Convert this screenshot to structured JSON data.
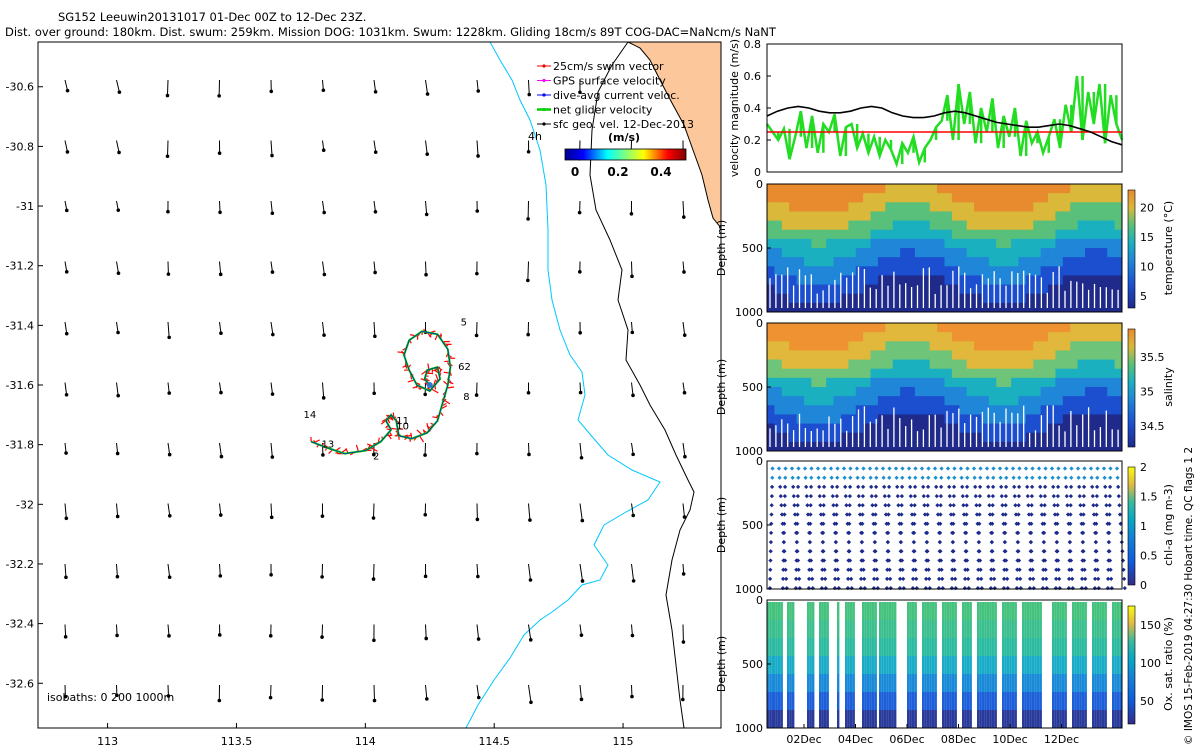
{
  "header": {
    "line1": "SG152 Leeuwin20131017 01-Dec 00Z to 12-Dec 23Z.",
    "line2": "Dist. over ground: 180km. Dist. swum: 259km. Mission DOG: 1031km. Swum: 1228km. Gliding 18cm/s 89T COG-DAC=NaNcm/s NaNT"
  },
  "credit": "© IMOS 15-Feb-2019 04:27:30 Hobart time. QC flags 1  2",
  "chart_data": [
    {
      "type": "scatter",
      "name": "map",
      "xticks": [
        "113",
        "113.5",
        "114",
        "114.5",
        "115"
      ],
      "yticks": [
        "-30.6",
        "-30.8",
        "-31",
        "-31.2",
        "-31.4",
        "-31.6",
        "-31.8",
        "-32",
        "-32.2",
        "-32.4",
        "-32.6"
      ],
      "xlim": [
        112.73,
        115.38
      ],
      "ylim": [
        -32.75,
        -30.45
      ],
      "legend": [
        {
          "label": "25cm/s swim vector",
          "color": "#ff0000"
        },
        {
          "label": "GPS surface velocity",
          "color": "#ff00ff"
        },
        {
          "label": "dive-avg current veloc.",
          "color": "#0000ff"
        },
        {
          "label": "net glider velocity",
          "color": "#00cc00"
        },
        {
          "label": "sfc geo. vel. 12-Dec-2013",
          "color": "#000000"
        }
      ],
      "colorbar": {
        "title": "(m/s)",
        "ticks": [
          "0",
          "0.2",
          "0.4"
        ],
        "range": [
          0,
          0.5
        ]
      },
      "isobaths_label": "isobaths: 0   200  1000m",
      "time_label": "4h",
      "day_labels": [
        {
          "text": "5",
          "x": 114.37,
          "y": -31.4
        },
        {
          "text": "62",
          "x": 114.36,
          "y": -31.55
        },
        {
          "text": "8",
          "x": 114.38,
          "y": -31.65
        },
        {
          "text": "11",
          "x": 114.12,
          "y": -31.73
        },
        {
          "text": "10",
          "x": 114.12,
          "y": -31.75
        },
        {
          "text": "14",
          "x": 113.76,
          "y": -31.71
        },
        {
          "text": "13",
          "x": 113.83,
          "y": -31.81
        },
        {
          "text": "2",
          "x": 114.03,
          "y": -31.85
        }
      ],
      "glider_track": [
        [
          113.79,
          -31.79
        ],
        [
          113.85,
          -31.81
        ],
        [
          113.92,
          -31.83
        ],
        [
          114.0,
          -31.82
        ],
        [
          114.06,
          -31.79
        ],
        [
          114.1,
          -31.75
        ],
        [
          114.08,
          -31.72
        ],
        [
          114.1,
          -31.7
        ],
        [
          114.12,
          -31.72
        ],
        [
          114.13,
          -31.77
        ],
        [
          114.18,
          -31.78
        ],
        [
          114.24,
          -31.76
        ],
        [
          114.28,
          -31.72
        ],
        [
          114.3,
          -31.66
        ],
        [
          114.32,
          -31.6
        ],
        [
          114.33,
          -31.54
        ],
        [
          114.32,
          -31.48
        ],
        [
          114.28,
          -31.43
        ],
        [
          114.22,
          -31.42
        ],
        [
          114.17,
          -31.45
        ],
        [
          114.15,
          -31.5
        ],
        [
          114.17,
          -31.55
        ],
        [
          114.2,
          -31.6
        ],
        [
          114.25,
          -31.62
        ],
        [
          114.29,
          -31.58
        ],
        [
          114.28,
          -31.54
        ],
        [
          114.24,
          -31.55
        ],
        [
          114.23,
          -31.58
        ],
        [
          114.25,
          -31.6
        ]
      ]
    },
    {
      "type": "line",
      "name": "velocity",
      "ylabel": "velocity magnitude (m/s)",
      "ylim": [
        0,
        0.8
      ],
      "yticks": [
        "0",
        "0.2",
        "0.4",
        "0.6",
        "0.8"
      ],
      "swim_constant": 0.25,
      "surface_velocity": [
        0.35,
        0.38,
        0.4,
        0.41,
        0.4,
        0.38,
        0.37,
        0.37,
        0.38,
        0.4,
        0.41,
        0.4,
        0.37,
        0.35,
        0.34,
        0.34,
        0.35,
        0.37,
        0.38,
        0.37,
        0.35,
        0.33,
        0.31,
        0.3,
        0.29,
        0.28,
        0.28,
        0.29,
        0.3,
        0.29,
        0.27,
        0.25,
        0.22,
        0.19,
        0.17
      ],
      "net_velocity": [
        0.3,
        0.25,
        0.2,
        0.27,
        0.08,
        0.22,
        0.38,
        0.15,
        0.35,
        0.12,
        0.3,
        0.25,
        0.36,
        0.1,
        0.28,
        0.3,
        0.15,
        0.24,
        0.12,
        0.22,
        0.1,
        0.2,
        0.14,
        0.05,
        0.18,
        0.12,
        0.22,
        0.06,
        0.15,
        0.2,
        0.28,
        0.32,
        0.48,
        0.2,
        0.55,
        0.3,
        0.5,
        0.18,
        0.4,
        0.25,
        0.46,
        0.15,
        0.35,
        0.22,
        0.4,
        0.1,
        0.32,
        0.18,
        0.25,
        0.12,
        0.22,
        0.33,
        0.15,
        0.42,
        0.25,
        0.6,
        0.2,
        0.5,
        0.3,
        0.55,
        0.18,
        0.48,
        0.3,
        0.2
      ]
    },
    {
      "type": "heatmap",
      "name": "temperature",
      "ylabel": "Depth (m)",
      "cbar_label": "temperature (°C)",
      "yticks": [
        "0",
        "500",
        "1000"
      ],
      "cbar_ticks": [
        "5",
        "10",
        "15",
        "20"
      ],
      "cbar_range": [
        3,
        23
      ]
    },
    {
      "type": "heatmap",
      "name": "salinity",
      "ylabel": "Depth (m)",
      "cbar_label": "salinity",
      "yticks": [
        "0",
        "500",
        "1000"
      ],
      "cbar_ticks": [
        "34.5",
        "35",
        "35.5"
      ],
      "cbar_range": [
        34.2,
        35.9
      ]
    },
    {
      "type": "heatmap",
      "name": "chl-a",
      "ylabel": "Depth (m)",
      "cbar_label": "chl-a (mg m-3)",
      "yticks": [
        "0",
        "500",
        "1000"
      ],
      "cbar_ticks": [
        "0",
        "0.5",
        "1",
        "1.5",
        "2"
      ],
      "cbar_range": [
        0,
        2
      ]
    },
    {
      "type": "heatmap",
      "name": "oxygen",
      "ylabel": "Depth (m)",
      "cbar_label": "Ox. sat. ratio (%)",
      "yticks": [
        "0",
        "500",
        "1000"
      ],
      "cbar_ticks": [
        "50",
        "100",
        "150"
      ],
      "cbar_range": [
        20,
        175
      ],
      "xticks": [
        "02Dec",
        "04Dec",
        "06Dec",
        "08Dec",
        "10Dec",
        "12Dec"
      ]
    }
  ]
}
